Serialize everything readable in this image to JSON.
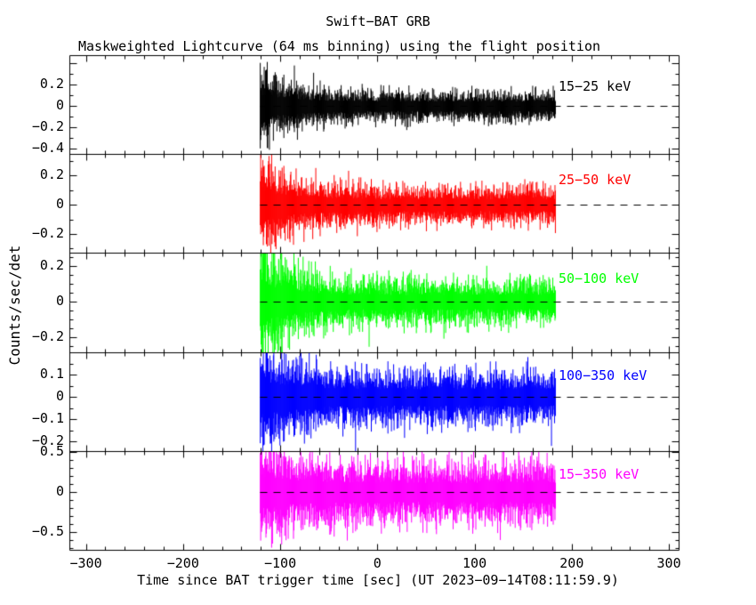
{
  "chart_data": {
    "type": "line",
    "title": "Swift−BAT GRB",
    "subtitle": "Maskweighted Lightcurve (64 ms binning) using the flight position",
    "xlabel": "Time since BAT trigger time [sec] (UT 2023−09−14T08:11:59.9)",
    "ylabel": "Counts/sec/det",
    "xlim": [
      -317,
      310
    ],
    "xticks": [
      -300,
      -200,
      -100,
      0,
      100,
      200,
      300
    ],
    "x_minor_step": 20,
    "grid": false,
    "background": "#ffffff",
    "axis_color": "#000000",
    "bin_ms": 64,
    "data_start_sec": -121,
    "data_end_sec": 183,
    "zero_line": {
      "style": "dashed",
      "color": "#000000",
      "from_sec": -121,
      "to": "plot-right-edge"
    },
    "panels": [
      {
        "label": "15−25 keV",
        "color": "#000000",
        "ylim": [
          -0.452,
          0.475
        ],
        "yticks_labeled": [
          0.2,
          0,
          -0.2,
          -0.4
        ],
        "y_major_step": 0.2,
        "y_minor_step": 0.1,
        "noise_sigma": 0.05,
        "burst_sigma": 0.125,
        "burst_tau_sec": 35
      },
      {
        "label": "25−50 keV",
        "color": "#ff0000",
        "ylim": [
          -0.33,
          0.345
        ],
        "yticks_labeled": [
          0.2,
          0,
          -0.2
        ],
        "y_major_step": 0.2,
        "y_minor_step": 0.1,
        "noise_sigma": 0.046,
        "burst_sigma": 0.12,
        "burst_tau_sec": 33
      },
      {
        "label": "50−100 keV",
        "color": "#00ff00",
        "ylim": [
          -0.283,
          0.273
        ],
        "yticks_labeled": [
          0.2,
          0,
          -0.2
        ],
        "y_major_step": 0.2,
        "y_minor_step": 0.05,
        "noise_sigma": 0.045,
        "burst_sigma": 0.13,
        "burst_tau_sec": 32
      },
      {
        "label": "100−350 keV",
        "color": "#0000ff",
        "ylim": [
          -0.243,
          0.202
        ],
        "yticks_labeled": [
          0.1,
          0,
          -0.1,
          -0.2
        ],
        "y_major_step": 0.1,
        "y_minor_step": 0.05,
        "noise_sigma": 0.042,
        "burst_sigma": 0.09,
        "burst_tau_sec": 34
      },
      {
        "label": "15−350 keV",
        "color": "#ff00ff",
        "ylim": [
          -0.722,
          0.513
        ],
        "yticks_labeled": [
          0.5,
          0,
          -0.5
        ],
        "y_major_step": 0.5,
        "y_minor_step": 0.1,
        "noise_sigma": 0.135,
        "burst_sigma": 0.23,
        "burst_tau_sec": 35
      }
    ]
  }
}
